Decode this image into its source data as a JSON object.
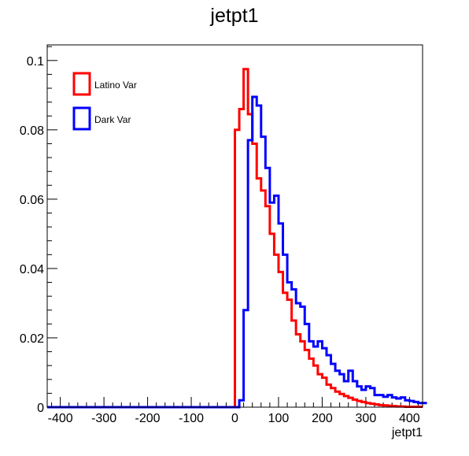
{
  "chart_data": {
    "type": "line",
    "title": "jetpt1",
    "xlabel": "jetpt1",
    "ylabel": "",
    "xlim": [
      -430,
      430
    ],
    "ylim": [
      0,
      0.1045
    ],
    "x_ticks": [
      -400,
      -300,
      -200,
      -100,
      0,
      100,
      200,
      300,
      400
    ],
    "y_ticks": [
      0,
      0.02,
      0.04,
      0.06,
      0.08,
      0.1
    ],
    "x_tick_labels": [
      "-400",
      "-300",
      "-200",
      "-100",
      "0",
      "100",
      "200",
      "300",
      "400"
    ],
    "y_tick_labels": [
      "0",
      "0.02",
      "0.04",
      "0.06",
      "0.08",
      "0.1"
    ],
    "grid": false,
    "legend": {
      "position": "top-left"
    },
    "style": "step-histogram",
    "bin_edges_start": -430,
    "bin_width": 10,
    "series": [
      {
        "name": "Latino Var",
        "color": "#ff0000",
        "values": [
          0,
          0,
          0,
          0,
          0,
          0,
          0,
          0,
          0,
          0,
          0,
          0,
          0,
          0,
          0,
          0,
          0,
          0,
          0,
          0,
          0,
          0,
          0,
          0,
          0,
          0,
          0,
          0,
          0,
          0,
          0,
          0,
          0,
          0,
          0,
          0,
          0,
          0,
          0,
          0,
          0,
          0,
          0,
          0.08,
          0.086,
          0.0975,
          0.0845,
          0.076,
          0.066,
          0.0625,
          0.058,
          0.05,
          0.044,
          0.039,
          0.033,
          0.031,
          0.025,
          0.021,
          0.019,
          0.0165,
          0.014,
          0.012,
          0.0095,
          0.0085,
          0.0065,
          0.0055,
          0.0045,
          0.0038,
          0.0032,
          0.0027,
          0.0022,
          0.0018,
          0.0015,
          0.0012,
          0.001,
          0.0008,
          0.0006,
          0.0005,
          0.0004,
          0.0003,
          0.0002,
          0.0002,
          0.0001,
          0.0001,
          0.0001,
          0.0001
        ]
      },
      {
        "name": "Dark Var",
        "color": "#0000ff",
        "values": [
          0,
          0,
          0,
          0,
          0,
          0,
          0,
          0,
          0,
          0,
          0,
          0,
          0,
          0,
          0,
          0,
          0,
          0,
          0,
          0,
          0,
          0,
          0,
          0,
          0,
          0,
          0,
          0,
          0,
          0,
          0,
          0,
          0,
          0,
          0,
          0,
          0,
          0,
          0,
          0,
          0,
          0,
          0,
          0,
          0.002,
          0.028,
          0.077,
          0.0895,
          0.087,
          0.078,
          0.069,
          0.059,
          0.061,
          0.053,
          0.044,
          0.036,
          0.034,
          0.03,
          0.029,
          0.024,
          0.019,
          0.0175,
          0.019,
          0.017,
          0.015,
          0.0125,
          0.0105,
          0.0095,
          0.0075,
          0.0105,
          0.0075,
          0.006,
          0.005,
          0.006,
          0.0055,
          0.0035,
          0.0035,
          0.003,
          0.0035,
          0.0028,
          0.0025,
          0.0028,
          0.002,
          0.0018,
          0.0015,
          0.0012,
          0.0012
        ]
      }
    ]
  }
}
